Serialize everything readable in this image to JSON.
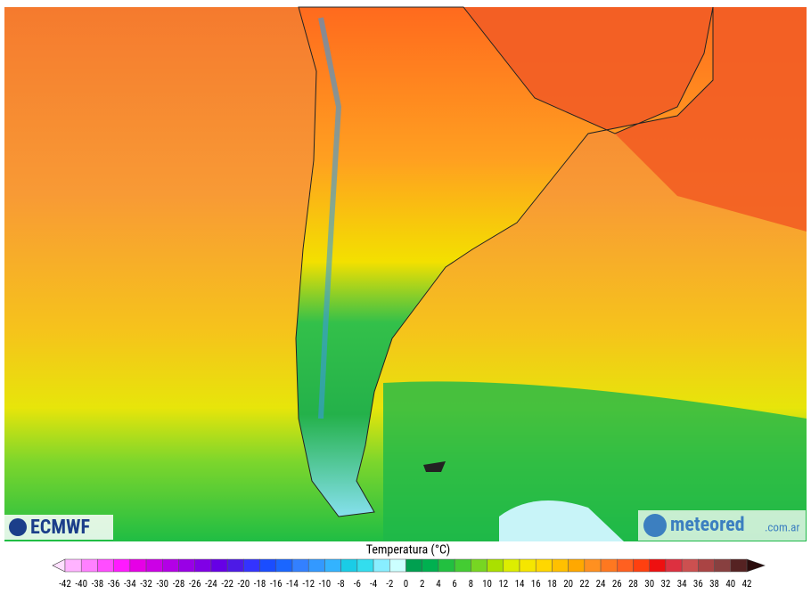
{
  "logos": {
    "left": "ECMWF",
    "right": "meteored",
    "right_suffix": ".com.ar"
  },
  "legend": {
    "title": "Temperatura (°C)",
    "ticks": [
      -42,
      -40,
      -38,
      -36,
      -34,
      -32,
      -30,
      -28,
      -26,
      -24,
      -22,
      -20,
      -18,
      -16,
      -14,
      -12,
      -10,
      -8,
      -6,
      -4,
      -2,
      0,
      2,
      4,
      6,
      8,
      10,
      12,
      14,
      16,
      18,
      20,
      22,
      24,
      26,
      28,
      30,
      32,
      34,
      36,
      38,
      40,
      42
    ],
    "under_color": "#ffe0ff",
    "over_color": "#2a0c0c",
    "colors": [
      "#ffb3ff",
      "#ff80ff",
      "#ff4dff",
      "#ff1aff",
      "#e600e6",
      "#cc00e6",
      "#b300e6",
      "#9900e6",
      "#8000e6",
      "#6600e6",
      "#4d1ae6",
      "#3333ff",
      "#1a4dff",
      "#1a66ff",
      "#3380ff",
      "#3399ff",
      "#33b3ff",
      "#1acce6",
      "#33ddee",
      "#88eeff",
      "#ccffff",
      "#00a050",
      "#00b050",
      "#22c040",
      "#44cc33",
      "#77d622",
      "#aae000",
      "#ddee00",
      "#f5e600",
      "#ffd700",
      "#ffc000",
      "#ffa800",
      "#ff9020",
      "#ff7820",
      "#ff6020",
      "#ff4010",
      "#ee1010",
      "#dd3040",
      "#cc5050",
      "#aa4444",
      "#884040",
      "#552222"
    ]
  }
}
